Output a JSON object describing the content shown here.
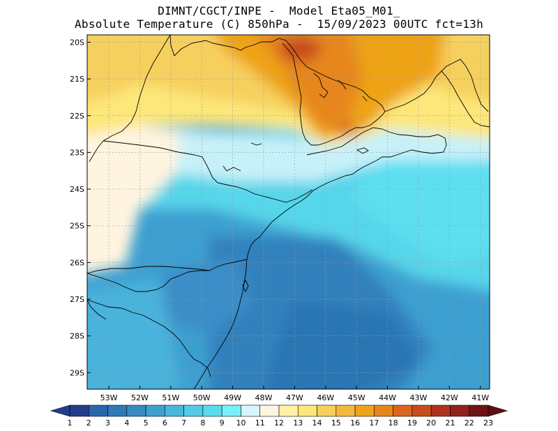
{
  "header": {
    "line1": "DIMNT/CGCT/INPE -  Model Eta05_M01_",
    "line2": "Absolute Temperature (C) 850hPa -  15/09/2023 00UTC fct=13h"
  },
  "map": {
    "lon_range": [
      -53.7,
      -40.7
    ],
    "lat_range": [
      -29.45,
      -19.8
    ],
    "lat_ticks": [
      "20S",
      "21S",
      "22S",
      "23S",
      "24S",
      "25S",
      "26S",
      "27S",
      "28S",
      "29S"
    ],
    "lon_ticks": [
      "53W",
      "52W",
      "51W",
      "50W",
      "49W",
      "48W",
      "47W",
      "46W",
      "45W",
      "44W",
      "43W",
      "42W",
      "41W"
    ],
    "gridlines": "dotted",
    "field": "Absolute Temperature (C) 850hPa",
    "warm_max_location": "interior São Paulo (north), ~19°C",
    "cool_min_location": "offshore south, ~5°C"
  },
  "colorbar": {
    "labels": [
      "1",
      "2",
      "3",
      "4",
      "5",
      "6",
      "7",
      "8",
      "9",
      "10",
      "11",
      "12",
      "13",
      "14",
      "15",
      "16",
      "17",
      "18",
      "19",
      "20",
      "21",
      "22",
      "23"
    ],
    "colors": [
      "#1f3f8c",
      "#2a66ac",
      "#2f79b8",
      "#3989c3",
      "#3fa0d0",
      "#49b7dc",
      "#52cbe8",
      "#5adcec",
      "#76f1f7",
      "#d7f5fb",
      "#fff6df",
      "#fff1a6",
      "#fde77a",
      "#f6d05e",
      "#f3b93d",
      "#eea319",
      "#e6861a",
      "#da651d",
      "#c94c1c",
      "#ac321b",
      "#8e211c",
      "#6d1417"
    ]
  }
}
